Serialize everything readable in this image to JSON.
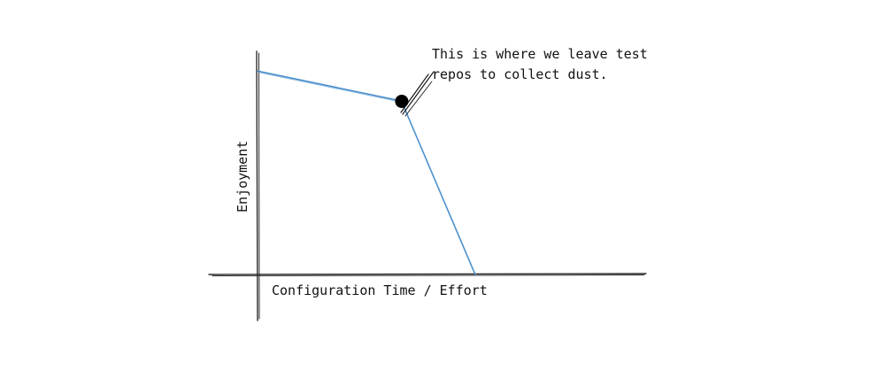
{
  "chart_data": {
    "type": "line",
    "xlabel": "Configuration Time / Effort",
    "ylabel": "Enjoyment",
    "grid": false,
    "series": [
      {
        "color": "#3d85c6",
        "points": [
          {
            "x": 0,
            "y": 0.95
          },
          {
            "x": 0.37,
            "y": 0.81
          },
          {
            "x": 0.56,
            "y": 0
          }
        ]
      }
    ],
    "annotation": {
      "lines": [
        "This is where we leave test",
        "repos to collect dust."
      ],
      "marker_point": {
        "x": 0.37,
        "y": 0.81
      },
      "marker_color": "#000000"
    }
  }
}
